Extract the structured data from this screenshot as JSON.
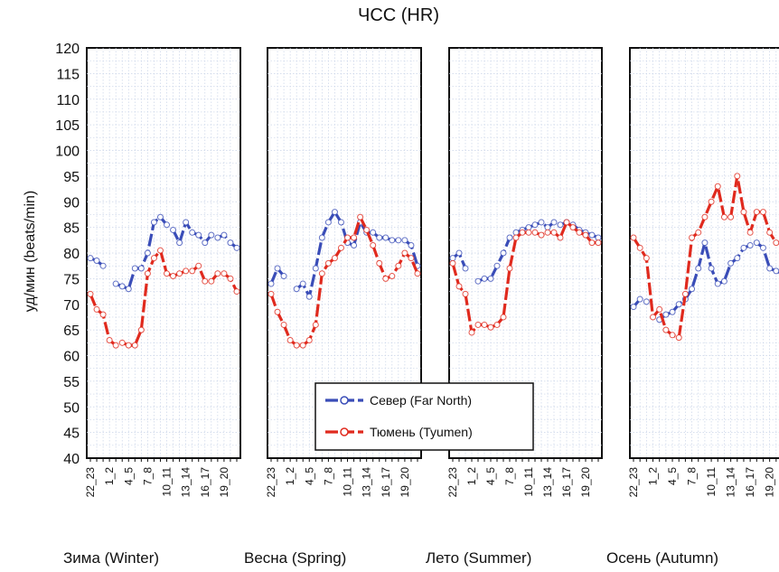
{
  "chart_data": {
    "type": "line",
    "title": "ЧСС (HR)",
    "ylabel": "уд/мин (beats/min)",
    "ylim": [
      40,
      120
    ],
    "yticks": [
      40,
      45,
      50,
      55,
      60,
      65,
      70,
      75,
      80,
      85,
      90,
      95,
      100,
      105,
      110,
      115,
      120
    ],
    "grid": true,
    "x": [
      "22_23",
      "23_24",
      "0_1",
      "1_2",
      "2_3",
      "3_4",
      "4_5",
      "5_6",
      "6_7",
      "7_8",
      "8_9",
      "9_10",
      "10_11",
      "11_12",
      "12_13",
      "13_14",
      "14_15",
      "15_16",
      "16_17",
      "17_18",
      "18_19",
      "19_20",
      "20_21",
      "21_22"
    ],
    "x_labels": [
      "22_23",
      "1_2",
      "4_5",
      "7_8",
      "10_11",
      "13_14",
      "16_17",
      "19_20"
    ],
    "legend": {
      "placement": "bottom-center",
      "entries": [
        "Север (Far North)",
        "Тюмень (Tyumen)"
      ]
    },
    "series_colors": [
      "#3a4db8",
      "#e02a1e"
    ],
    "panels": [
      {
        "label": "Зима (Winter)",
        "series": [
          {
            "name": "Север (Far North)",
            "values": [
              79,
              78.5,
              77.5,
              null,
              74,
              73.5,
              73,
              77,
              77,
              80,
              86,
              87,
              85.5,
              84.5,
              82,
              86,
              84,
              83.5,
              82,
              83.5,
              83,
              83.5,
              82,
              81
            ]
          },
          {
            "name": "Тюмень (Tyumen)",
            "values": [
              72,
              69,
              68,
              63,
              62,
              62.5,
              62,
              62,
              65,
              76,
              79,
              80.5,
              76,
              75.5,
              76,
              76.5,
              76.5,
              77.5,
              74.5,
              74.5,
              76,
              76,
              75,
              72.5
            ]
          }
        ]
      },
      {
        "label": "Весна (Spring)",
        "series": [
          {
            "name": "Север (Far North)",
            "values": [
              74,
              77,
              75.5,
              null,
              73,
              74,
              71.5,
              77,
              83,
              86,
              88,
              86,
              82,
              81.5,
              86,
              84,
              84,
              83,
              83,
              82.5,
              82.5,
              82.5,
              81.5,
              77.5
            ]
          },
          {
            "name": "Тюмень (Tyumen)",
            "values": [
              72,
              68.5,
              66,
              63,
              62,
              62,
              63,
              66,
              76,
              78,
              79,
              81,
              83,
              83,
              87,
              84.5,
              81.5,
              78,
              75,
              75.5,
              77.5,
              80,
              79,
              76
            ]
          }
        ]
      },
      {
        "label": "Лето (Summer)",
        "series": [
          {
            "name": "Север (Far North)",
            "values": [
              79,
              80,
              77,
              null,
              74.5,
              75,
              75,
              77.5,
              80,
              83,
              84,
              84.5,
              85,
              85.5,
              86,
              85,
              86,
              85.5,
              86,
              85.5,
              84.5,
              84,
              83.5,
              83
            ]
          },
          {
            "name": "Тюмень (Tyumen)",
            "values": [
              78,
              73.5,
              72,
              64.5,
              66,
              66,
              65.5,
              66,
              67.5,
              77,
              83,
              84,
              84,
              84,
              83.5,
              84,
              84,
              83,
              86,
              85,
              84,
              83.5,
              82,
              82
            ]
          }
        ]
      },
      {
        "label": "Осень (Autumn)",
        "series": [
          {
            "name": "Север (Far North)",
            "values": [
              69.5,
              71,
              70.5,
              null,
              67,
              68,
              68.5,
              70,
              71,
              73,
              77,
              82,
              77,
              74,
              74.5,
              78,
              79,
              81,
              81.5,
              82,
              81,
              77,
              76.5,
              76
            ]
          },
          {
            "name": "Тюмень (Tyumen)",
            "values": [
              83,
              81,
              79,
              67.5,
              69,
              65,
              64,
              63.5,
              72,
              83,
              84,
              87,
              90,
              93,
              87,
              87,
              95,
              88,
              84,
              88,
              88,
              84,
              82,
              82
            ]
          }
        ]
      }
    ]
  }
}
